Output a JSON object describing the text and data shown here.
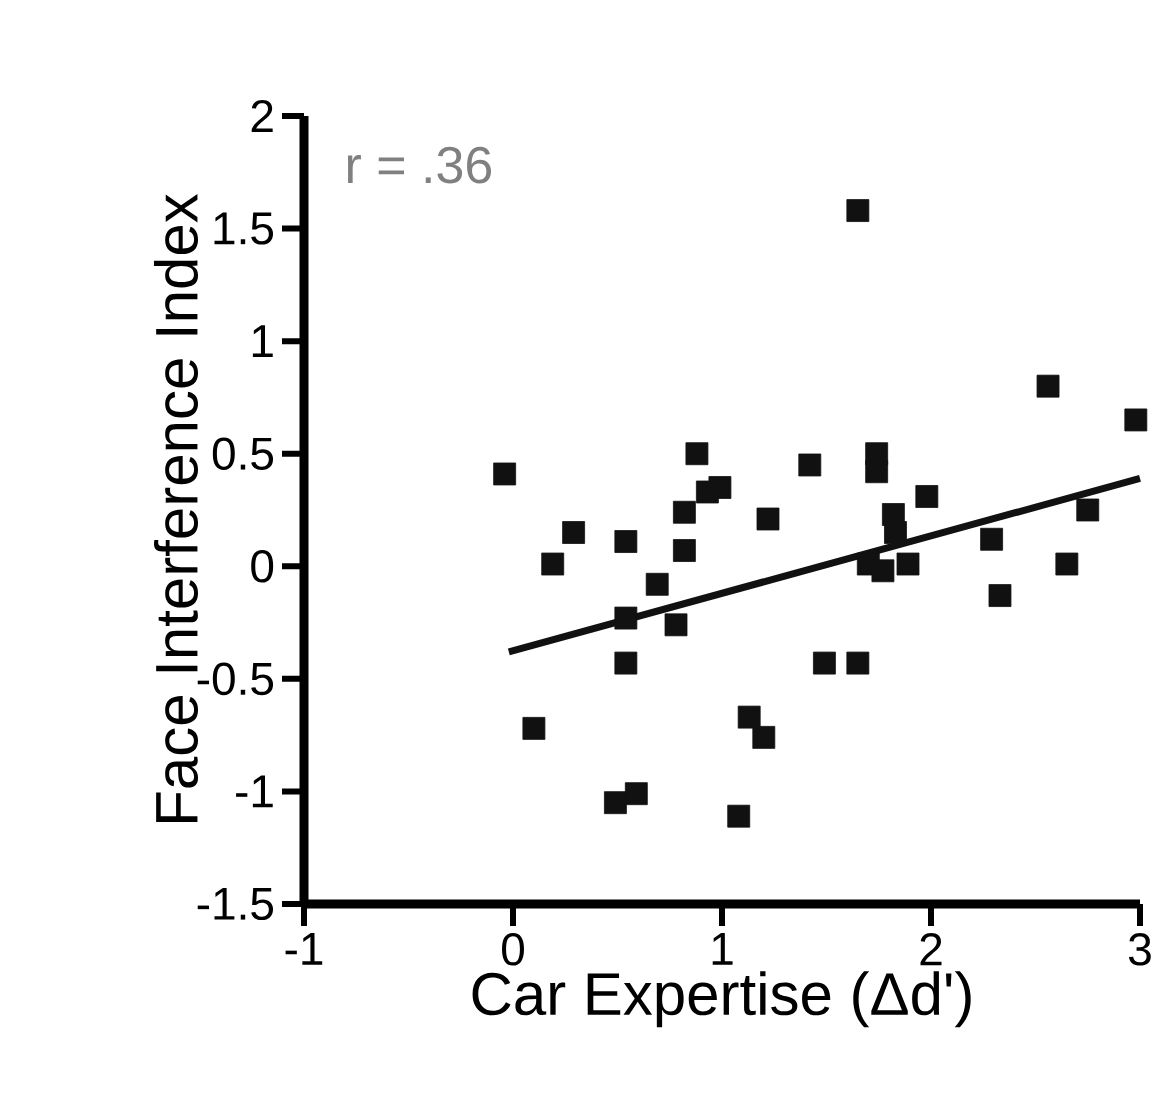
{
  "chart_data": {
    "type": "scatter",
    "xlabel": "Car Expertise (Δd')",
    "ylabel": "Face Interference Index",
    "xlim": [
      -1,
      3
    ],
    "ylim": [
      -1.5,
      2
    ],
    "xticks": [
      -1,
      0,
      1,
      2,
      3
    ],
    "yticks": [
      2,
      1.5,
      1,
      0.5,
      0,
      -0.5,
      -1,
      -1.5
    ],
    "grid": false,
    "annotations": [
      "r = .36"
    ],
    "series": [
      {
        "marker": "square",
        "color": "#111111",
        "x": [
          -0.04,
          0.29,
          0.19,
          0.54,
          0.1,
          0.69,
          0.54,
          0.54,
          0.78,
          0.82,
          0.82,
          0.88,
          0.99,
          0.93,
          1.22,
          0.49,
          0.59,
          1.08,
          1.13,
          1.2,
          1.65,
          2.56,
          2.98,
          1.42,
          1.74,
          1.74,
          1.98,
          1.82,
          1.83,
          1.7,
          1.77,
          1.89,
          2.29,
          2.33,
          2.75,
          2.65,
          1.49,
          1.65
        ],
        "values": [
          0.41,
          0.15,
          0.01,
          0.11,
          -0.72,
          -0.08,
          -0.23,
          -0.43,
          -0.26,
          0.07,
          0.24,
          0.5,
          0.35,
          0.33,
          0.21,
          -1.05,
          -1.01,
          -1.11,
          -0.67,
          -0.76,
          1.58,
          0.8,
          0.65,
          0.45,
          0.5,
          0.42,
          0.31,
          0.23,
          0.15,
          0.01,
          -0.02,
          0.01,
          0.12,
          -0.13,
          0.25,
          0.01,
          -0.43,
          -0.43
        ]
      },
      {
        "type": "line",
        "marker": "none",
        "line_style": "solid",
        "color": "#111111",
        "x": [
          -0.02,
          3.0
        ],
        "values": [
          -0.38,
          0.39
        ]
      }
    ]
  }
}
